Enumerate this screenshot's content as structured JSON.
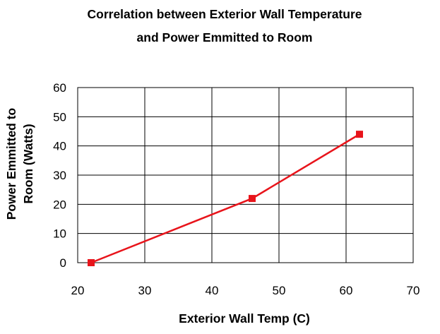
{
  "chart_data": {
    "type": "line",
    "title": [
      "Correlation between Exterior Wall Temperature",
      "and Power Emmitted to Room"
    ],
    "xlabel": "Exterior Wall Temp (C)",
    "ylabel": [
      "Power Emmitted to",
      "Room (Watts)"
    ],
    "xlim": [
      20,
      70
    ],
    "ylim": [
      0,
      60
    ],
    "x_ticks": [
      20,
      30,
      40,
      50,
      60,
      70
    ],
    "y_ticks": [
      0,
      10,
      20,
      30,
      40,
      50,
      60
    ],
    "grid": true,
    "legend": "none",
    "series": [
      {
        "color": "#e8141b",
        "marker": "square",
        "points": [
          {
            "x": 22,
            "y": 0
          },
          {
            "x": 46,
            "y": 22
          },
          {
            "x": 62,
            "y": 44
          }
        ]
      }
    ]
  }
}
